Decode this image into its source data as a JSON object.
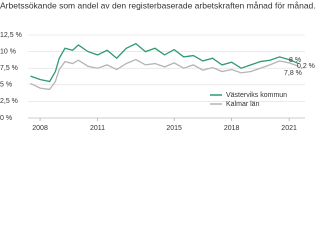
{
  "chart_data": {
    "type": "line",
    "title": "Arbetssökande som andel av den registerbaserade arbetskraften månad för månad.",
    "x": [
      2007.5,
      2008,
      2008.5,
      2008.8,
      2009,
      2009.3,
      2009.7,
      2010,
      2010.5,
      2011,
      2011.5,
      2012,
      2012.5,
      2013,
      2013.5,
      2014,
      2014.5,
      2015,
      2015.5,
      2016,
      2016.5,
      2017,
      2017.5,
      2018,
      2018.5,
      2019,
      2019.5,
      2020,
      2020.5,
      2021,
      2021.5
    ],
    "series": [
      {
        "name": "Västerviks kommun",
        "color": "#2e9a6e",
        "values": [
          6.3,
          5.8,
          5.5,
          7,
          9,
          10.5,
          10.2,
          11,
          10,
          9.5,
          10.2,
          9,
          10.5,
          11.2,
          10,
          10.5,
          9.5,
          10.3,
          9.2,
          9.4,
          8.6,
          9,
          8,
          8.4,
          7.5,
          8,
          8.5,
          8.7,
          9.2,
          8.8,
          8.2
        ]
      },
      {
        "name": "Kalmar län",
        "color": "#b4b4b4",
        "values": [
          5.2,
          4.5,
          4.3,
          5.5,
          7.3,
          8.5,
          8.2,
          8.7,
          7.8,
          7.5,
          8,
          7.3,
          8.2,
          8.8,
          8,
          8.2,
          7.7,
          8.3,
          7.5,
          8,
          7.2,
          7.6,
          7,
          7.3,
          6.8,
          7,
          7.5,
          8,
          8.6,
          8.3,
          7.8
        ]
      }
    ],
    "annotations": [
      "8 %",
      "0,2 %",
      "7,8 %"
    ],
    "xlim": [
      2007.37,
      2021.83
    ],
    "xticks": [
      2008,
      2011,
      2015,
      2018,
      2021
    ],
    "ylim": [
      0,
      12.5
    ],
    "yticks": [
      {
        "value": 0,
        "label": "0 %"
      },
      {
        "value": 2.5,
        "label": "2,5 %"
      },
      {
        "value": 5,
        "label": "5 %"
      },
      {
        "value": 7.5,
        "label": "7,5 %"
      },
      {
        "value": 10,
        "label": "10 %"
      },
      {
        "value": 12.5,
        "label": "12,5 %"
      }
    ],
    "grid": true
  }
}
